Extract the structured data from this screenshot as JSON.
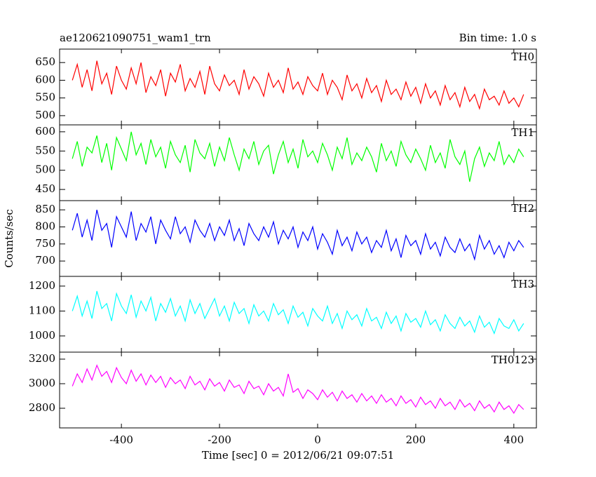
{
  "chart_data": {
    "type": "line",
    "title": "ae120621090751_wam1_trn",
    "subtitle": "Bin time: 1.0 s",
    "xlabel": "Time [sec] 0 = 2012/06/21 09:07:51",
    "ylabel": "Counts/sec",
    "xlim": [
      -526,
      446
    ],
    "xticks": [
      -400,
      -200,
      0,
      200,
      400
    ],
    "x": [
      -500,
      -490,
      -480,
      -470,
      -460,
      -450,
      -440,
      -430,
      -420,
      -410,
      -400,
      -390,
      -380,
      -370,
      -360,
      -350,
      -340,
      -330,
      -320,
      -310,
      -300,
      -290,
      -280,
      -270,
      -260,
      -250,
      -240,
      -230,
      -220,
      -210,
      -200,
      -190,
      -180,
      -170,
      -160,
      -150,
      -140,
      -130,
      -120,
      -110,
      -100,
      -90,
      -80,
      -70,
      -60,
      -50,
      -40,
      -30,
      -20,
      -10,
      0,
      10,
      20,
      30,
      40,
      50,
      60,
      70,
      80,
      90,
      100,
      110,
      120,
      130,
      140,
      150,
      160,
      170,
      180,
      190,
      200,
      210,
      220,
      230,
      240,
      250,
      260,
      270,
      280,
      290,
      300,
      310,
      320,
      330,
      340,
      350,
      360,
      370,
      380,
      390,
      400,
      410,
      420
    ],
    "panels": [
      {
        "name": "TH0",
        "color": "#ff0000",
        "ylim": [
          474,
          688
        ],
        "yticks": [
          500,
          550,
          600,
          650
        ],
        "values": [
          600,
          645,
          580,
          630,
          570,
          655,
          590,
          620,
          560,
          640,
          600,
          575,
          635,
          590,
          650,
          565,
          610,
          585,
          630,
          555,
          620,
          595,
          645,
          570,
          605,
          580,
          625,
          560,
          640,
          590,
          570,
          615,
          585,
          600,
          560,
          630,
          575,
          610,
          590,
          555,
          620,
          580,
          600,
          565,
          635,
          575,
          595,
          560,
          610,
          585,
          570,
          620,
          560,
          600,
          580,
          545,
          615,
          570,
          590,
          550,
          605,
          565,
          585,
          540,
          600,
          560,
          575,
          545,
          595,
          555,
          580,
          535,
          590,
          550,
          570,
          530,
          585,
          545,
          565,
          525,
          580,
          540,
          560,
          520,
          575,
          545,
          555,
          530,
          570,
          535,
          550,
          525,
          560
        ]
      },
      {
        "name": "TH1",
        "color": "#00ff00",
        "ylim": [
          421,
          618
        ],
        "yticks": [
          450,
          500,
          550,
          600
        ],
        "values": [
          530,
          575,
          510,
          560,
          545,
          590,
          520,
          570,
          500,
          585,
          555,
          525,
          600,
          540,
          570,
          515,
          580,
          535,
          560,
          505,
          575,
          540,
          520,
          565,
          495,
          580,
          545,
          530,
          570,
          510,
          560,
          525,
          585,
          540,
          500,
          555,
          530,
          575,
          515,
          550,
          565,
          490,
          540,
          575,
          520,
          555,
          505,
          580,
          535,
          550,
          520,
          570,
          540,
          500,
          560,
          530,
          585,
          515,
          545,
          525,
          560,
          535,
          495,
          570,
          525,
          550,
          510,
          575,
          540,
          520,
          555,
          530,
          500,
          565,
          520,
          545,
          505,
          580,
          535,
          515,
          550,
          470,
          530,
          560,
          510,
          545,
          525,
          575,
          515,
          540,
          520,
          555,
          535
        ]
      },
      {
        "name": "TH2",
        "color": "#0000ff",
        "ylim": [
          655,
          877
        ],
        "yticks": [
          700,
          750,
          800,
          850
        ],
        "values": [
          790,
          840,
          770,
          820,
          760,
          850,
          790,
          810,
          740,
          830,
          800,
          770,
          845,
          760,
          810,
          785,
          830,
          750,
          820,
          790,
          765,
          830,
          780,
          800,
          755,
          820,
          790,
          770,
          810,
          760,
          800,
          775,
          820,
          760,
          795,
          745,
          810,
          780,
          760,
          800,
          770,
          815,
          750,
          790,
          765,
          800,
          740,
          785,
          760,
          800,
          735,
          780,
          755,
          720,
          790,
          745,
          770,
          730,
          785,
          750,
          770,
          725,
          760,
          740,
          790,
          730,
          765,
          710,
          775,
          745,
          760,
          720,
          780,
          735,
          755,
          715,
          770,
          740,
          725,
          765,
          730,
          750,
          705,
          775,
          735,
          760,
          720,
          745,
          710,
          755,
          730,
          760,
          740
        ]
      },
      {
        "name": "TH3",
        "color": "#00ffff",
        "ylim": [
          935,
          1239
        ],
        "yticks": [
          1000,
          1100,
          1200
        ],
        "values": [
          1100,
          1160,
          1080,
          1140,
          1070,
          1180,
          1110,
          1130,
          1060,
          1170,
          1120,
          1090,
          1165,
          1075,
          1140,
          1100,
          1155,
          1060,
          1130,
          1095,
          1150,
          1080,
          1120,
          1060,
          1145,
          1090,
          1130,
          1070,
          1110,
          1150,
          1080,
          1120,
          1060,
          1135,
          1090,
          1110,
          1050,
          1125,
          1080,
          1100,
          1060,
          1130,
          1085,
          1105,
          1050,
          1120,
          1075,
          1095,
          1040,
          1110,
          1080,
          1060,
          1120,
          1050,
          1090,
          1030,
          1100,
          1065,
          1085,
          1040,
          1110,
          1060,
          1075,
          1030,
          1095,
          1050,
          1080,
          1020,
          1090,
          1055,
          1070,
          1035,
          1100,
          1045,
          1065,
          1020,
          1085,
          1050,
          1030,
          1075,
          1040,
          1060,
          1015,
          1080,
          1035,
          1055,
          1010,
          1070,
          1040,
          1030,
          1065,
          1020,
          1050
        ]
      },
      {
        "name": "TH0123",
        "color": "#ff00ff",
        "ylim": [
          2640,
          3257
        ],
        "yticks": [
          2800,
          3000,
          3200
        ],
        "values": [
          2980,
          3080,
          3010,
          3120,
          3030,
          3150,
          3060,
          3100,
          3010,
          3130,
          3050,
          3000,
          3110,
          3020,
          3080,
          2990,
          3070,
          3010,
          3060,
          2970,
          3050,
          3000,
          3030,
          2960,
          3060,
          2990,
          3020,
          2950,
          3040,
          2980,
          3010,
          2940,
          3030,
          2970,
          2990,
          2920,
          3020,
          2960,
          2980,
          2910,
          3000,
          2940,
          2970,
          2900,
          3080,
          2930,
          2960,
          2880,
          2950,
          2920,
          2870,
          2950,
          2890,
          2930,
          2860,
          2940,
          2880,
          2910,
          2850,
          2920,
          2860,
          2900,
          2840,
          2910,
          2850,
          2880,
          2820,
          2900,
          2840,
          2870,
          2810,
          2890,
          2830,
          2860,
          2800,
          2880,
          2820,
          2850,
          2790,
          2870,
          2810,
          2840,
          2780,
          2860,
          2800,
          2830,
          2770,
          2850,
          2790,
          2820,
          2760,
          2830,
          2790
        ]
      }
    ]
  }
}
